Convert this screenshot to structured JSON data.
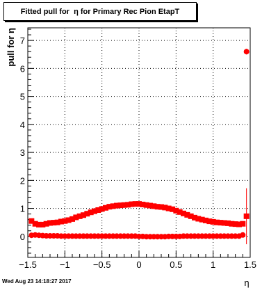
{
  "title": "Fitted pull for  η for Primary Rec Pion EtapT",
  "timestamp": "Wed Aug 23 14:18:27 2017",
  "chart_data": {
    "type": "scatter",
    "xlabel": "η",
    "ylabel": "pull for  η",
    "xlim": [
      -1.5,
      1.5
    ],
    "ylim": [
      -0.75,
      7.45
    ],
    "x_ticks": [
      -1.5,
      -1,
      -0.5,
      0,
      0.5,
      1,
      1.5
    ],
    "x_tick_labels": [
      "−1.5",
      "−1",
      "−0.5",
      "0",
      "0.5",
      "1",
      "1.5"
    ],
    "y_ticks": [
      0,
      1,
      2,
      3,
      4,
      5,
      6,
      7
    ],
    "y_tick_labels": [
      "0",
      "1",
      "2",
      "3",
      "4",
      "5",
      "6",
      "7"
    ],
    "grid": true,
    "color": "#ff0000",
    "series": [
      {
        "marker": "square",
        "x": [
          -1.45,
          -1.4,
          -1.35,
          -1.3,
          -1.25,
          -1.2,
          -1.15,
          -1.1,
          -1.05,
          -1.0,
          -0.95,
          -0.9,
          -0.85,
          -0.8,
          -0.75,
          -0.7,
          -0.65,
          -0.6,
          -0.55,
          -0.5,
          -0.45,
          -0.4,
          -0.35,
          -0.3,
          -0.25,
          -0.2,
          -0.15,
          -0.1,
          -0.05,
          0.0,
          0.05,
          0.1,
          0.15,
          0.2,
          0.25,
          0.3,
          0.35,
          0.4,
          0.45,
          0.5,
          0.55,
          0.6,
          0.65,
          0.7,
          0.75,
          0.8,
          0.85,
          0.9,
          0.95,
          1.0,
          1.05,
          1.1,
          1.15,
          1.2,
          1.25,
          1.3,
          1.35,
          1.4,
          1.45
        ],
        "y": [
          0.55,
          0.45,
          0.42,
          0.42,
          0.45,
          0.48,
          0.49,
          0.5,
          0.53,
          0.55,
          0.58,
          0.62,
          0.68,
          0.72,
          0.76,
          0.81,
          0.86,
          0.9,
          0.94,
          0.98,
          1.02,
          1.06,
          1.08,
          1.1,
          1.11,
          1.12,
          1.13,
          1.15,
          1.16,
          1.16,
          1.14,
          1.12,
          1.1,
          1.08,
          1.06,
          1.05,
          1.03,
          1.0,
          0.97,
          0.92,
          0.87,
          0.82,
          0.77,
          0.72,
          0.67,
          0.63,
          0.6,
          0.57,
          0.54,
          0.52,
          0.5,
          0.49,
          0.48,
          0.47,
          0.45,
          0.44,
          0.43,
          0.45,
          0.72
        ],
        "y_err": [
          0.05,
          0.04,
          0.04,
          0.04,
          0.04,
          0.04,
          0.04,
          0.04,
          0.04,
          0.04,
          0.04,
          0.04,
          0.04,
          0.04,
          0.04,
          0.04,
          0.04,
          0.04,
          0.04,
          0.04,
          0.04,
          0.04,
          0.04,
          0.04,
          0.04,
          0.04,
          0.04,
          0.04,
          0.04,
          0.04,
          0.04,
          0.04,
          0.04,
          0.04,
          0.04,
          0.04,
          0.04,
          0.04,
          0.04,
          0.04,
          0.04,
          0.04,
          0.04,
          0.04,
          0.04,
          0.04,
          0.04,
          0.04,
          0.04,
          0.04,
          0.04,
          0.04,
          0.04,
          0.04,
          0.04,
          0.04,
          0.04,
          0.06,
          1.0
        ]
      },
      {
        "marker": "circle",
        "x": [
          -1.45,
          -1.4,
          -1.35,
          -1.3,
          -1.25,
          -1.2,
          -1.15,
          -1.1,
          -1.05,
          -1.0,
          -0.95,
          -0.9,
          -0.85,
          -0.8,
          -0.75,
          -0.7,
          -0.65,
          -0.6,
          -0.55,
          -0.5,
          -0.45,
          -0.4,
          -0.35,
          -0.3,
          -0.25,
          -0.2,
          -0.15,
          -0.1,
          -0.05,
          0.0,
          0.05,
          0.1,
          0.15,
          0.2,
          0.25,
          0.3,
          0.35,
          0.4,
          0.45,
          0.5,
          0.55,
          0.6,
          0.65,
          0.7,
          0.75,
          0.8,
          0.85,
          0.9,
          0.95,
          1.0,
          1.05,
          1.1,
          1.15,
          1.2,
          1.25,
          1.3,
          1.35,
          1.4,
          1.45
        ],
        "y": [
          0.04,
          0.05,
          0.04,
          0.03,
          0.02,
          0.02,
          0.02,
          0.02,
          0.01,
          0.01,
          0.01,
          0.01,
          0.01,
          0.01,
          0.01,
          0.01,
          0.01,
          0.01,
          0.01,
          0.01,
          0.01,
          0.01,
          0.01,
          0.01,
          0.01,
          0.01,
          0.01,
          0.01,
          0.01,
          0.0,
          0.0,
          -0.01,
          -0.01,
          -0.01,
          -0.01,
          -0.01,
          -0.01,
          0.0,
          0.0,
          0.0,
          0.0,
          0.01,
          0.01,
          0.01,
          0.01,
          0.01,
          0.01,
          0.01,
          0.01,
          0.01,
          0.01,
          0.01,
          0.01,
          0.01,
          0.01,
          0.01,
          0.01,
          0.05,
          6.6
        ],
        "y_err": [
          0.03,
          0.03,
          0.03,
          0.03,
          0.03,
          0.03,
          0.03,
          0.03,
          0.03,
          0.03,
          0.03,
          0.03,
          0.03,
          0.03,
          0.03,
          0.03,
          0.03,
          0.03,
          0.03,
          0.03,
          0.03,
          0.03,
          0.03,
          0.03,
          0.03,
          0.03,
          0.03,
          0.03,
          0.03,
          0.03,
          0.03,
          0.03,
          0.03,
          0.03,
          0.03,
          0.03,
          0.03,
          0.03,
          0.03,
          0.03,
          0.03,
          0.03,
          0.03,
          0.03,
          0.03,
          0.03,
          0.03,
          0.03,
          0.03,
          0.03,
          0.03,
          0.03,
          0.03,
          0.03,
          0.03,
          0.03,
          0.03,
          0.04,
          0.1
        ]
      }
    ]
  }
}
